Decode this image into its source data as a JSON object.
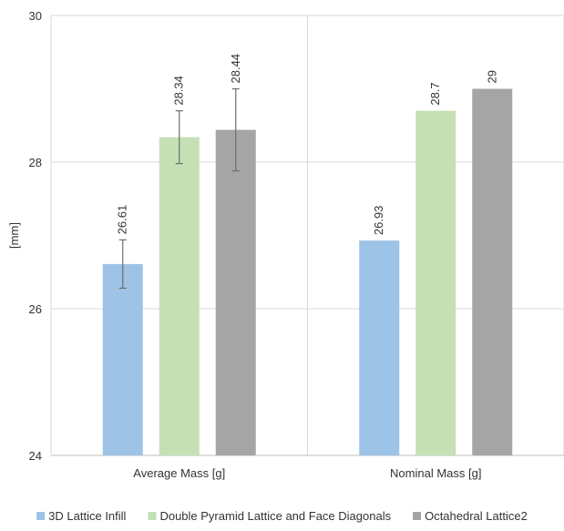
{
  "chart_data": {
    "type": "bar",
    "title": "",
    "xlabel": "",
    "ylabel": "[mm]",
    "ylim": [
      24,
      30
    ],
    "yticks": [
      "24",
      "26",
      "28",
      "30"
    ],
    "categories": [
      "Average Mass [g]",
      "Nominal Mass [g]"
    ],
    "series": [
      {
        "name": "3D Lattice Infill",
        "color": "#9dc3e6",
        "values": [
          26.61,
          26.93
        ],
        "labels": [
          "26.61",
          "26.93"
        ],
        "error": [
          0.33,
          null
        ]
      },
      {
        "name": "Double Pyramid Lattice and Face Diagonals",
        "color": "#c5e0b4",
        "values": [
          28.34,
          28.7
        ],
        "labels": [
          "28.34",
          "28.7"
        ],
        "error": [
          0.36,
          null
        ]
      },
      {
        "name": "Octahedral Lattice2",
        "color": "#a5a5a5",
        "values": [
          28.44,
          29
        ],
        "labels": [
          "28.44",
          "29"
        ],
        "error": [
          0.56,
          null
        ]
      }
    ],
    "gridlines": true,
    "legend_position": "bottom"
  }
}
